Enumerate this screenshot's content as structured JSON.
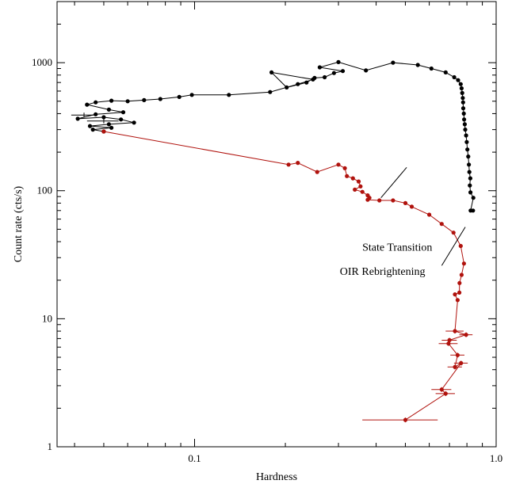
{
  "chart_data": {
    "type": "scatter",
    "title": "",
    "xlabel": "Hardness",
    "ylabel": "Count rate (cts/s)",
    "x_scale": "log",
    "y_scale": "log",
    "xlim": [
      0.035,
      1.0
    ],
    "ylim": [
      1,
      3000
    ],
    "x_ticks": [
      {
        "value": 0.1,
        "label": "0.1"
      },
      {
        "value": 1.0,
        "label": "1.0"
      }
    ],
    "y_ticks": [
      {
        "value": 1,
        "label": "1"
      },
      {
        "value": 10,
        "label": "10"
      },
      {
        "value": 100,
        "label": "100"
      },
      {
        "value": 1000,
        "label": "1000"
      }
    ],
    "grid": false,
    "annotations": [
      {
        "text": "State Transition",
        "x": 0.47,
        "y": 34,
        "line": [
          [
            0.415,
            88
          ],
          [
            0.505,
            152
          ]
        ]
      },
      {
        "text": "OIR Rebrightening",
        "x": 0.42,
        "y": 22,
        "line": [
          [
            0.66,
            26
          ],
          [
            0.79,
            52
          ]
        ]
      }
    ],
    "series": [
      {
        "color": "#000000",
        "points": [
          {
            "x": 0.838,
            "y": 70
          },
          {
            "x": 0.823,
            "y": 70
          },
          {
            "x": 0.84,
            "y": 88
          },
          {
            "x": 0.822,
            "y": 97
          },
          {
            "x": 0.818,
            "y": 110
          },
          {
            "x": 0.821,
            "y": 125
          },
          {
            "x": 0.815,
            "y": 140
          },
          {
            "x": 0.812,
            "y": 160
          },
          {
            "x": 0.808,
            "y": 185
          },
          {
            "x": 0.803,
            "y": 210
          },
          {
            "x": 0.799,
            "y": 240
          },
          {
            "x": 0.795,
            "y": 270
          },
          {
            "x": 0.79,
            "y": 300
          },
          {
            "x": 0.787,
            "y": 330
          },
          {
            "x": 0.783,
            "y": 360
          },
          {
            "x": 0.781,
            "y": 400
          },
          {
            "x": 0.778,
            "y": 440
          },
          {
            "x": 0.777,
            "y": 490
          },
          {
            "x": 0.775,
            "y": 530
          },
          {
            "x": 0.772,
            "y": 580
          },
          {
            "x": 0.768,
            "y": 630
          },
          {
            "x": 0.763,
            "y": 680
          },
          {
            "x": 0.748,
            "y": 730
          },
          {
            "x": 0.726,
            "y": 770
          },
          {
            "x": 0.68,
            "y": 840
          },
          {
            "x": 0.61,
            "y": 900
          },
          {
            "x": 0.55,
            "y": 960
          },
          {
            "x": 0.455,
            "y": 1000
          },
          {
            "x": 0.37,
            "y": 870
          },
          {
            "x": 0.3,
            "y": 1010
          },
          {
            "x": 0.26,
            "y": 920
          },
          {
            "x": 0.31,
            "y": 860
          },
          {
            "x": 0.29,
            "y": 830
          },
          {
            "x": 0.27,
            "y": 770
          },
          {
            "x": 0.25,
            "y": 760
          },
          {
            "x": 0.235,
            "y": 700
          },
          {
            "x": 0.202,
            "y": 640
          },
          {
            "x": 0.18,
            "y": 840
          },
          {
            "x": 0.247,
            "y": 740
          },
          {
            "x": 0.22,
            "y": 680
          },
          {
            "x": 0.178,
            "y": 590
          },
          {
            "x": 0.13,
            "y": 560
          },
          {
            "x": 0.098,
            "y": 560
          },
          {
            "x": 0.089,
            "y": 540
          },
          {
            "x": 0.077,
            "y": 520
          },
          {
            "x": 0.068,
            "y": 510
          },
          {
            "x": 0.06,
            "y": 500
          },
          {
            "x": 0.053,
            "y": 505
          },
          {
            "x": 0.047,
            "y": 490
          },
          {
            "x": 0.044,
            "y": 470
          },
          {
            "x": 0.052,
            "y": 430
          },
          {
            "x": 0.058,
            "y": 410
          },
          {
            "x": 0.047,
            "y": 395
          },
          {
            "x": 0.041,
            "y": 365
          },
          {
            "x": 0.05,
            "y": 375
          },
          {
            "x": 0.057,
            "y": 360
          },
          {
            "x": 0.063,
            "y": 340
          },
          {
            "x": 0.052,
            "y": 330
          },
          {
            "x": 0.045,
            "y": 320
          },
          {
            "x": 0.053,
            "y": 310
          },
          {
            "x": 0.046,
            "y": 300
          },
          {
            "x": 0.05,
            "y": 290
          }
        ],
        "x_err_points": [
          {
            "x": 0.043,
            "y": 390,
            "xerr": 0.004
          },
          {
            "x": 0.05,
            "y": 350,
            "xerr": 0.006
          }
        ]
      },
      {
        "color": "#b0120d",
        "points": [
          {
            "x": 0.05,
            "y": 290
          },
          {
            "x": 0.205,
            "y": 160
          },
          {
            "x": 0.22,
            "y": 165
          },
          {
            "x": 0.255,
            "y": 140
          },
          {
            "x": 0.3,
            "y": 160
          },
          {
            "x": 0.315,
            "y": 150
          },
          {
            "x": 0.32,
            "y": 130
          },
          {
            "x": 0.335,
            "y": 125
          },
          {
            "x": 0.35,
            "y": 118
          },
          {
            "x": 0.355,
            "y": 108
          },
          {
            "x": 0.34,
            "y": 102
          },
          {
            "x": 0.36,
            "y": 98
          },
          {
            "x": 0.375,
            "y": 92
          },
          {
            "x": 0.38,
            "y": 88
          },
          {
            "x": 0.375,
            "y": 85
          },
          {
            "x": 0.41,
            "y": 84
          },
          {
            "x": 0.455,
            "y": 84
          },
          {
            "x": 0.5,
            "y": 80
          },
          {
            "x": 0.525,
            "y": 75
          },
          {
            "x": 0.6,
            "y": 65
          },
          {
            "x": 0.66,
            "y": 55
          },
          {
            "x": 0.722,
            "y": 47
          },
          {
            "x": 0.763,
            "y": 37
          },
          {
            "x": 0.782,
            "y": 27
          },
          {
            "x": 0.768,
            "y": 22
          },
          {
            "x": 0.756,
            "y": 19
          },
          {
            "x": 0.755,
            "y": 16
          },
          {
            "x": 0.73,
            "y": 15.5
          },
          {
            "x": 0.745,
            "y": 14
          },
          {
            "x": 0.73,
            "y": 8
          },
          {
            "x": 0.795,
            "y": 7.5
          },
          {
            "x": 0.7,
            "y": 6.8
          },
          {
            "x": 0.695,
            "y": 6.4
          },
          {
            "x": 0.745,
            "y": 5.2
          },
          {
            "x": 0.73,
            "y": 4.2
          },
          {
            "x": 0.765,
            "y": 4.5
          },
          {
            "x": 0.66,
            "y": 2.8
          },
          {
            "x": 0.68,
            "y": 2.6
          },
          {
            "x": 0.5,
            "y": 1.62
          }
        ],
        "x_err_points": [
          {
            "x": 0.73,
            "y": 8,
            "xerr": 0.05
          },
          {
            "x": 0.795,
            "y": 7.5,
            "xerr": 0.04
          },
          {
            "x": 0.7,
            "y": 6.8,
            "xerr": 0.04
          },
          {
            "x": 0.695,
            "y": 6.4,
            "xerr": 0.05
          },
          {
            "x": 0.745,
            "y": 5.2,
            "xerr": 0.04
          },
          {
            "x": 0.73,
            "y": 4.2,
            "xerr": 0.04
          },
          {
            "x": 0.765,
            "y": 4.5,
            "xerr": 0.04
          },
          {
            "x": 0.66,
            "y": 2.8,
            "xerr": 0.05
          },
          {
            "x": 0.68,
            "y": 2.6,
            "xerr": 0.05
          },
          {
            "x": 0.5,
            "y": 1.62,
            "xerr": 0.14
          }
        ]
      }
    ]
  }
}
